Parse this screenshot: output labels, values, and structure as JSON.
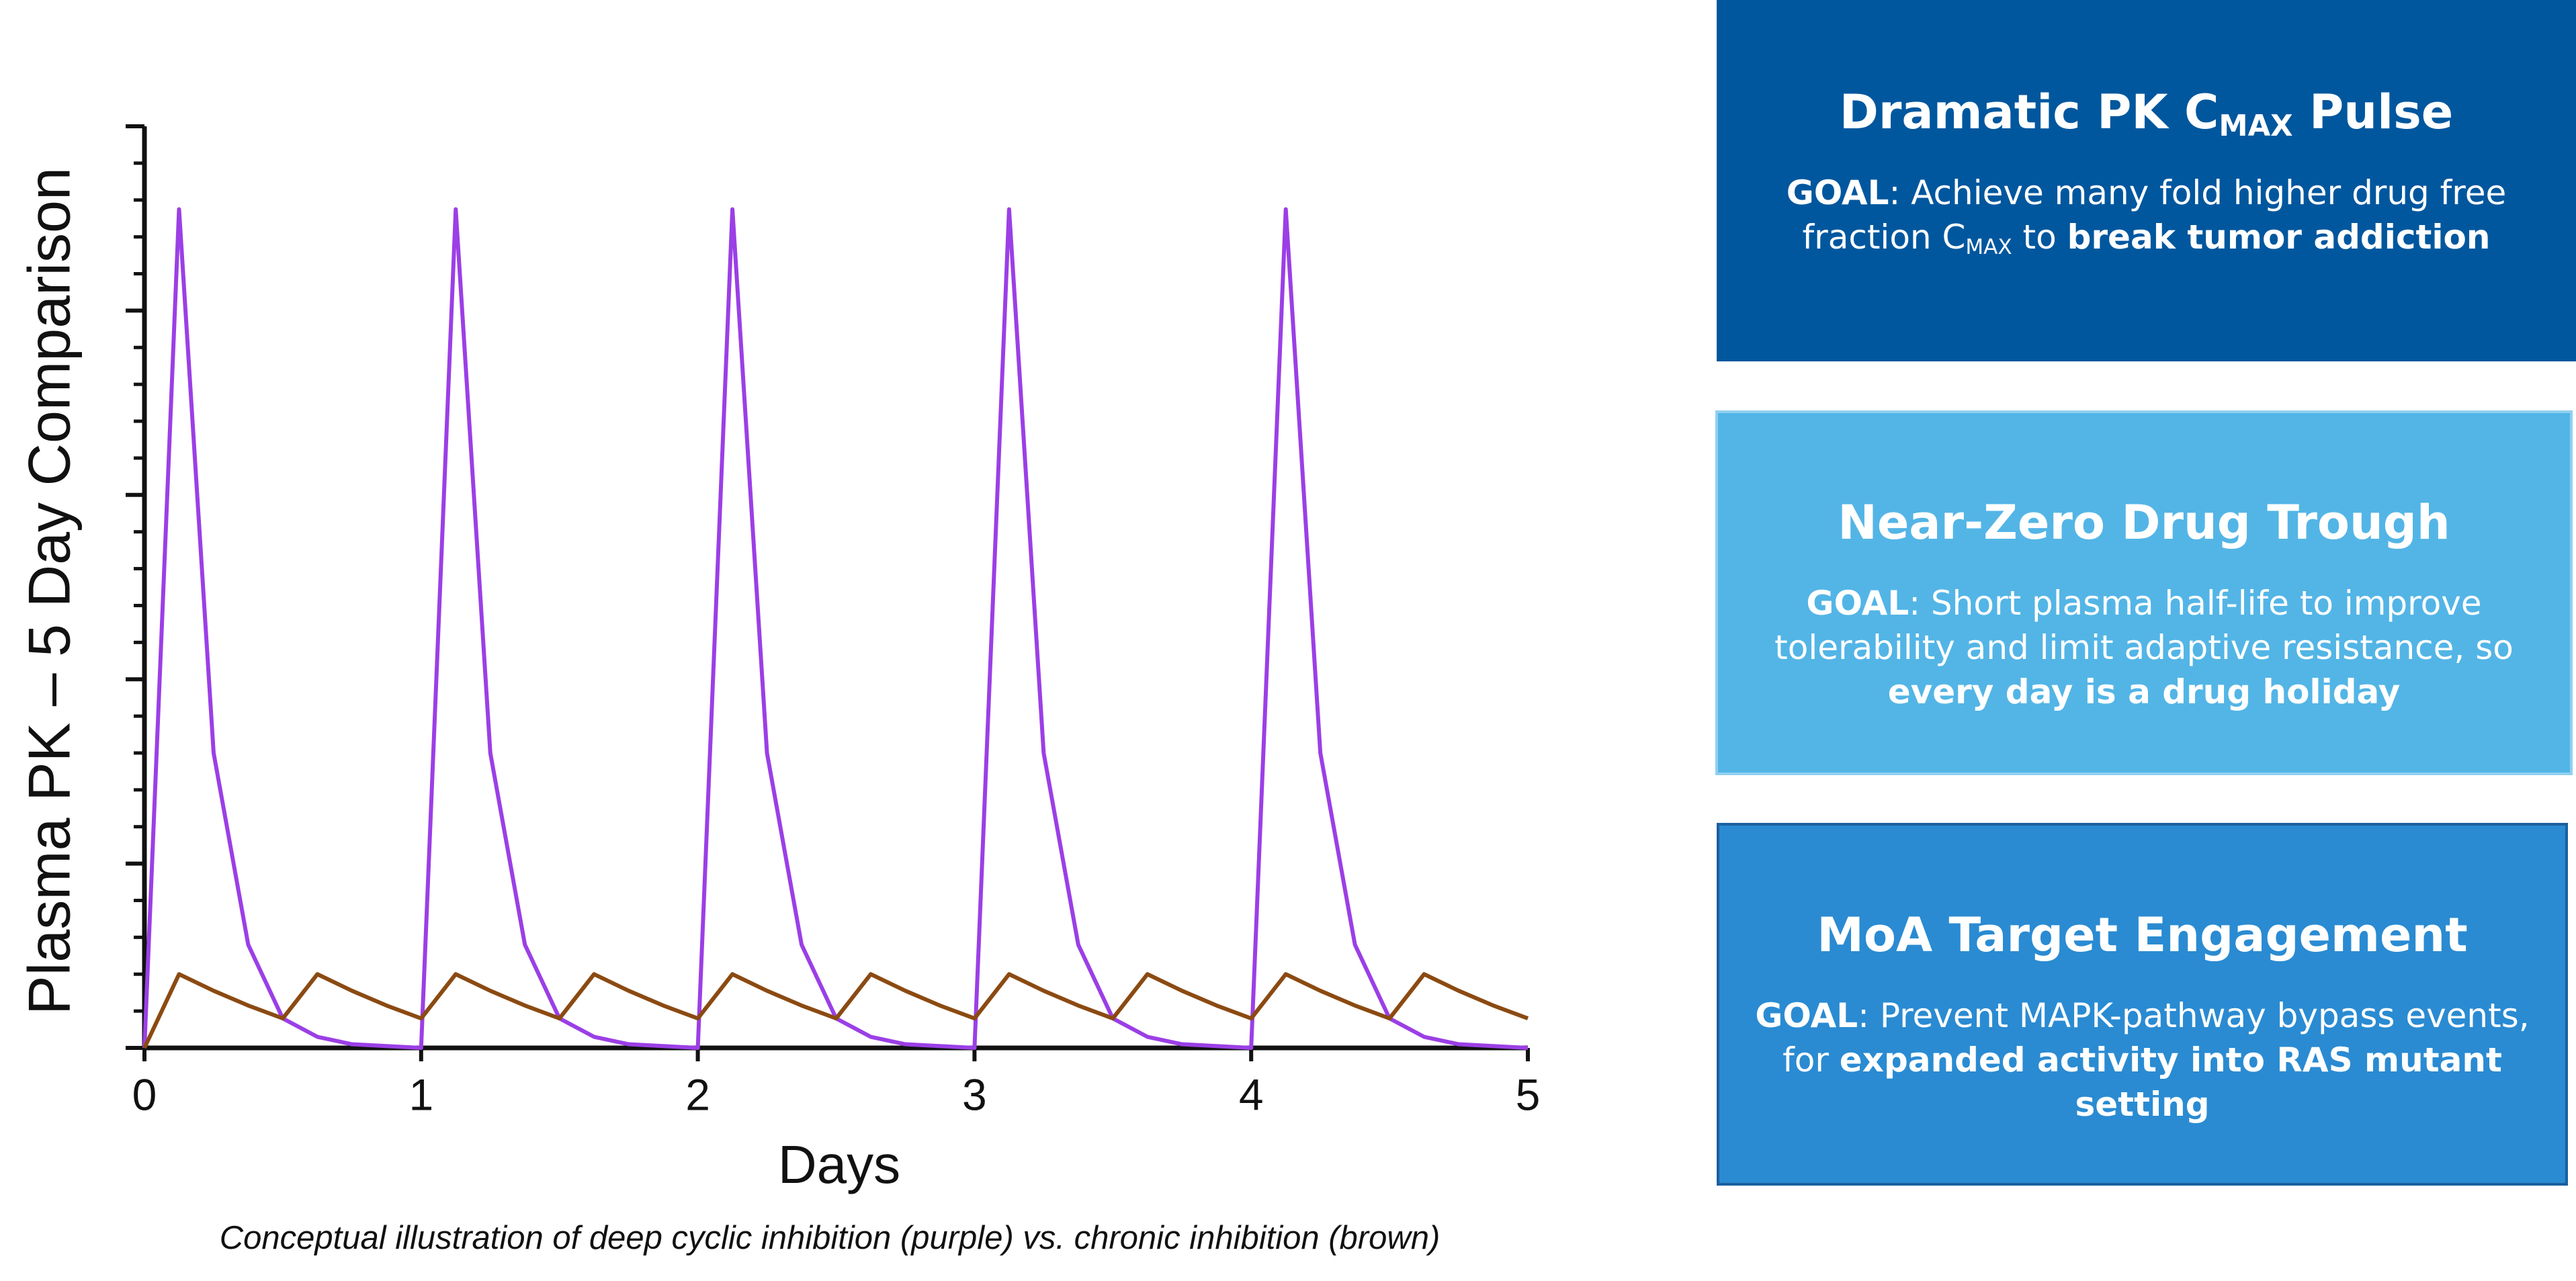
{
  "chart_data": {
    "type": "line",
    "x": [
      0,
      0.125,
      0.25,
      0.375,
      0.5,
      0.625,
      0.75,
      0.875,
      1,
      1.125,
      1.25,
      1.375,
      1.5,
      1.625,
      1.75,
      1.875,
      2,
      2.125,
      2.25,
      2.375,
      2.5,
      2.625,
      2.75,
      2.875,
      3,
      3.125,
      3.25,
      3.375,
      3.5,
      3.625,
      3.75,
      3.875,
      4,
      4.125,
      4.25,
      4.375,
      4.5,
      4.625,
      4.75,
      4.875,
      5
    ],
    "series": [
      {
        "color": "#9b3fe6",
        "values": [
          0,
          91,
          32,
          11.2,
          3.2,
          1.2,
          0.4,
          0.2,
          0,
          91,
          32,
          11.2,
          3.2,
          1.2,
          0.4,
          0.2,
          0,
          91,
          32,
          11.2,
          3.2,
          1.2,
          0.4,
          0.2,
          0,
          91,
          32,
          11.2,
          3.2,
          1.2,
          0.4,
          0.2,
          0,
          91,
          32,
          11.2,
          3.2,
          1.2,
          0.4,
          0.2,
          0
        ]
      },
      {
        "color": "#8b4a12",
        "values": [
          0,
          8,
          6.2,
          4.6,
          3.2,
          8,
          6.2,
          4.6,
          3.2,
          8,
          6.2,
          4.6,
          3.2,
          8,
          6.2,
          4.6,
          3.2,
          8,
          6.2,
          4.6,
          3.2,
          8,
          6.2,
          4.6,
          3.2,
          8,
          6.2,
          4.6,
          3.2,
          8,
          6.2,
          4.6,
          3.2,
          8,
          6.2,
          4.6,
          3.2,
          8,
          6.2,
          4.6,
          3.2
        ]
      }
    ],
    "xlim": [
      0,
      5
    ],
    "xticks": [
      0,
      1,
      2,
      3,
      4,
      5
    ],
    "ylim": [
      0,
      100
    ],
    "yticks": [
      0,
      20,
      40,
      60,
      80,
      100
    ],
    "yminorticks": [
      4,
      8,
      12,
      16,
      24,
      28,
      32,
      36,
      44,
      48,
      52,
      56,
      64,
      68,
      72,
      76,
      84,
      88,
      92,
      96
    ],
    "xlabel": "Days",
    "ylabel": "Plasma PK – 5 Day Comparison",
    "caption": "Conceptual illustration of deep cyclic inhibition (purple) vs. chronic inhibition (brown)"
  },
  "panels": [
    {
      "color": "#00579e",
      "border": "#00579e",
      "title": [
        {
          "text": "Dramatic PK C"
        },
        {
          "text": "MAX",
          "style": "sub"
        },
        {
          "text": " Pulse"
        }
      ],
      "body": [
        {
          "text": "GOAL",
          "style": "bold"
        },
        {
          "text": ": Achieve many fold higher drug free fraction C"
        },
        {
          "text": "MAX",
          "style": "sub"
        },
        {
          "text": " to "
        },
        {
          "text": "break tumor addiction",
          "style": "bold"
        }
      ]
    },
    {
      "color": "#53b5e6",
      "border": "#8fd0f0",
      "title": [
        {
          "text": "Near-Zero Drug Trough"
        }
      ],
      "body": [
        {
          "text": "GOAL",
          "style": "bold"
        },
        {
          "text": ": Short plasma half-life to improve tolerability and limit adaptive resistance, so "
        },
        {
          "text": "every day is a drug holiday",
          "style": "bold"
        }
      ]
    },
    {
      "color": "#2a8bd2",
      "border": "#1b5f9f",
      "title": [
        {
          "text": "MoA Target Engagement"
        }
      ],
      "body": [
        {
          "text": "GOAL",
          "style": "bold"
        },
        {
          "text": ": Prevent MAPK-pathway bypass events, for "
        },
        {
          "text": "expanded activity into RAS mutant setting",
          "style": "bold"
        }
      ]
    }
  ]
}
